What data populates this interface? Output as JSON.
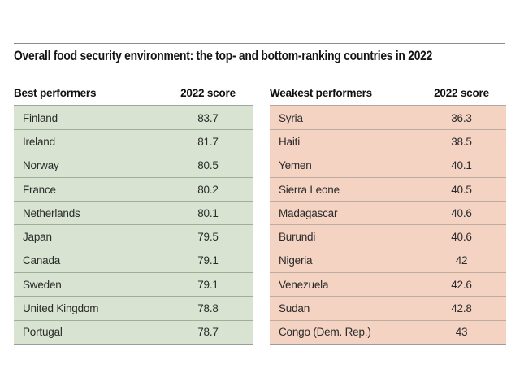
{
  "title": "Overall food security environment: the top- and bottom-ranking countries in 2022",
  "chart_data": {
    "type": "table",
    "title": "Overall food security environment: the top- and bottom-ranking countries in 2022",
    "tables": [
      {
        "heading": "Best performers",
        "score_label": "2022 score",
        "rows": [
          {
            "country": "Finland",
            "score": "83.7"
          },
          {
            "country": "Ireland",
            "score": "81.7"
          },
          {
            "country": "Norway",
            "score": "80.5"
          },
          {
            "country": "France",
            "score": "80.2"
          },
          {
            "country": "Netherlands",
            "score": "80.1"
          },
          {
            "country": "Japan",
            "score": "79.5"
          },
          {
            "country": "Canada",
            "score": "79.1"
          },
          {
            "country": "Sweden",
            "score": "79.1"
          },
          {
            "country": "United Kingdom",
            "score": "78.8"
          },
          {
            "country": "Portugal",
            "score": "78.7"
          }
        ]
      },
      {
        "heading": "Weakest performers",
        "score_label": "2022 score",
        "rows": [
          {
            "country": "Syria",
            "score": "36.3"
          },
          {
            "country": "Haiti",
            "score": "38.5"
          },
          {
            "country": "Yemen",
            "score": "40.1"
          },
          {
            "country": "Sierra Leone",
            "score": "40.5"
          },
          {
            "country": "Madagascar",
            "score": "40.6"
          },
          {
            "country": "Burundi",
            "score": "40.6"
          },
          {
            "country": "Nigeria",
            "score": "42"
          },
          {
            "country": "Venezuela",
            "score": "42.6"
          },
          {
            "country": "Sudan",
            "score": "42.8"
          },
          {
            "country": "Congo (Dem. Rep.)",
            "score": "43"
          }
        ]
      }
    ]
  },
  "colors": {
    "best-bg": "#d8e4d1",
    "best-rule": "#9fa89a",
    "best-sep": "#a2ae9c",
    "weakest-bg": "#f4d3c3",
    "weakest-rule": "#b5a69d",
    "weakest-sep": "#bfaba0"
  }
}
